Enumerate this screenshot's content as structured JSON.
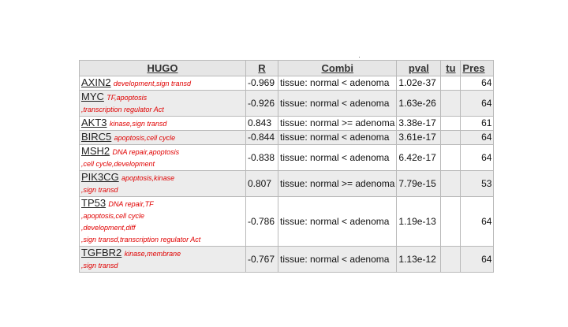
{
  "table": {
    "headers": {
      "hugo": "HUGO",
      "r": "R",
      "combi": "Combi",
      "pval": "pval",
      "tu": "tu",
      "pres": "Pres"
    },
    "rows": [
      {
        "gene": "AXIN2",
        "ann": [
          "development,sign transd"
        ],
        "r": "-0.969",
        "combi": "tissue: normal < adenoma",
        "pval": "1.02e-37",
        "tu": "",
        "pres": "64"
      },
      {
        "gene": "MYC",
        "ann": [
          "TF,apoptosis",
          ",transcription regulator Act"
        ],
        "r": "-0.926",
        "combi": "tissue: normal < adenoma",
        "pval": "1.63e-26",
        "tu": "",
        "pres": "64"
      },
      {
        "gene": "AKT3",
        "ann": [
          "kinase,sign transd"
        ],
        "r": "0.843",
        "combi": "tissue: normal >= adenoma",
        "pval": "3.38e-17",
        "tu": "",
        "pres": "61"
      },
      {
        "gene": "BIRC5",
        "ann": [
          "apoptosis,cell cycle"
        ],
        "r": "-0.844",
        "combi": "tissue: normal < adenoma",
        "pval": "3.61e-17",
        "tu": "",
        "pres": "64"
      },
      {
        "gene": "MSH2",
        "ann": [
          "DNA repair,apoptosis",
          ",cell cycle,development"
        ],
        "r": "-0.838",
        "combi": "tissue: normal < adenoma",
        "pval": "6.42e-17",
        "tu": "",
        "pres": "64"
      },
      {
        "gene": "PIK3CG",
        "ann": [
          "apoptosis,kinase",
          ",sign transd"
        ],
        "r": "0.807",
        "combi": "tissue: normal >= adenoma",
        "pval": "7.79e-15",
        "tu": "",
        "pres": "53"
      },
      {
        "gene": "TP53",
        "ann": [
          "DNA repair,TF",
          ",apoptosis,cell cycle",
          ",development,diff",
          ",sign transd,transcription regulator Act"
        ],
        "r": "-0.786",
        "combi": "tissue: normal < adenoma",
        "pval": "1.19e-13",
        "tu": "",
        "pres": "64"
      },
      {
        "gene": "TGFBR2",
        "ann": [
          "kinase,membrane",
          ",sign transd"
        ],
        "r": "-0.767",
        "combi": "tissue: normal < adenoma",
        "pval": "1.13e-12",
        "tu": "",
        "pres": "64"
      }
    ]
  }
}
